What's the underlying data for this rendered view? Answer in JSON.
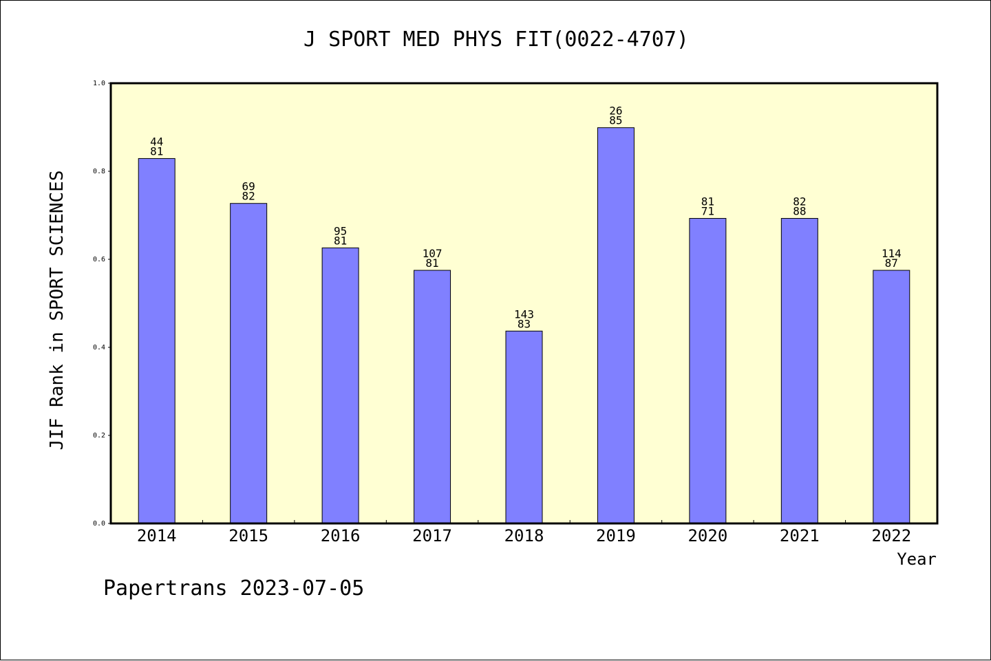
{
  "chart_data": {
    "type": "bar",
    "title": "J SPORT MED PHYS FIT(0022-4707)",
    "ylabel": "JIF Rank in SPORT SCIENCES",
    "xlabel": "Year",
    "ylim": [
      0,
      1.0
    ],
    "yticks": [
      "0.0",
      "0.2",
      "0.4",
      "0.6",
      "0.8",
      "1.0"
    ],
    "categories": [
      "2014",
      "2015",
      "2016",
      "2017",
      "2018",
      "2019",
      "2020",
      "2021",
      "2022"
    ],
    "values": [
      0.829,
      0.727,
      0.626,
      0.575,
      0.437,
      0.899,
      0.693,
      0.693,
      0.575
    ],
    "label_top": [
      "44",
      "69",
      "95",
      "107",
      "143",
      "26",
      "81",
      "82",
      "114"
    ],
    "label_bottom": [
      "81",
      "82",
      "81",
      "81",
      "83",
      "85",
      "71",
      "88",
      "87"
    ],
    "grid": false,
    "legend": "none"
  },
  "footer": "Papertrans 2023-07-05",
  "colors": {
    "plot_background": "#ffffd3",
    "bar_fill": "#8080ff",
    "bar_stroke": "#000000",
    "axis": "#000000"
  }
}
